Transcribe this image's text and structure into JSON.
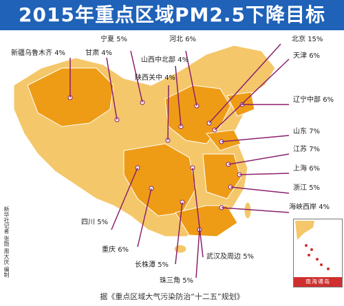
{
  "title": "2015年重点区域PM2.5下降目标",
  "source": "据《重点区域大气污染防治“十二五”规划》",
  "credit": "新华社记者 张勋 周大庆 编制",
  "inset_label": "南海诸岛",
  "colors": {
    "title_bg": "#1f62b8",
    "land_other": "#f4c76a",
    "land_key": "#ee9c16",
    "border": "#ffffff",
    "leader": "#8a1f6b",
    "marker": "#ffffff"
  },
  "regions": [
    {
      "name": "新疆乌鲁木齐",
      "value": "4%"
    },
    {
      "name": "甘肃",
      "value": "4%"
    },
    {
      "name": "宁夏",
      "value": "5%"
    },
    {
      "name": "河北",
      "value": "6%"
    },
    {
      "name": "山西中北部",
      "value": "4%"
    },
    {
      "name": "陕西关中",
      "value": "4%"
    },
    {
      "name": "北京",
      "value": "15%"
    },
    {
      "name": "天津",
      "value": "6%"
    },
    {
      "name": "辽宁中部",
      "value": "6%"
    },
    {
      "name": "山东",
      "value": "7%"
    },
    {
      "name": "江苏",
      "value": "7%"
    },
    {
      "name": "上海",
      "value": "6%"
    },
    {
      "name": "浙江",
      "value": "5%"
    },
    {
      "name": "海峡西岸",
      "value": "4%"
    },
    {
      "name": "四川",
      "value": "5%"
    },
    {
      "name": "重庆",
      "value": "6%"
    },
    {
      "name": "长株潭",
      "value": "5%"
    },
    {
      "name": "武汉及周边",
      "value": "5%"
    },
    {
      "name": "珠三角",
      "value": "5%"
    }
  ]
}
